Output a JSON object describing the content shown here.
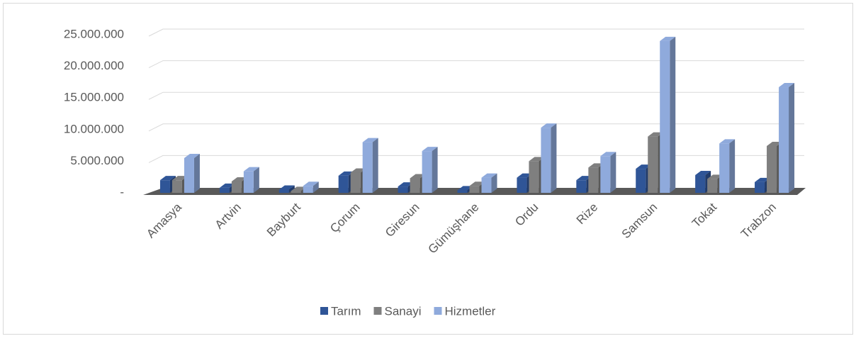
{
  "chart_data": {
    "type": "bar3d",
    "categories": [
      "Amasya",
      "Artvin",
      "Bayburt",
      "Çorum",
      "Giresun",
      "Gümüşhane",
      "Ordu",
      "Rize",
      "Samsun",
      "Tokat",
      "Trabzon"
    ],
    "series": [
      {
        "name": "Tarım",
        "color": "#2f5597",
        "values": [
          2000000,
          800000,
          500000,
          2700000,
          1000000,
          400000,
          2400000,
          2000000,
          3800000,
          2800000,
          1700000
        ]
      },
      {
        "name": "Sanayi",
        "color": "#7f7f7f",
        "values": [
          2000000,
          1800000,
          300000,
          3200000,
          2300000,
          1100000,
          5000000,
          4000000,
          8900000,
          2200000,
          7400000
        ]
      },
      {
        "name": "Hizmetler",
        "color": "#8faadc",
        "values": [
          5500000,
          3400000,
          1100000,
          8000000,
          6600000,
          2400000,
          10300000,
          5800000,
          24000000,
          7800000,
          16700000
        ]
      }
    ],
    "ylim": [
      0,
      25000000
    ],
    "yticks": [
      {
        "value": 0,
        "label": "-"
      },
      {
        "value": 5000000,
        "label": "5.000.000"
      },
      {
        "value": 10000000,
        "label": "10.000.000"
      },
      {
        "value": 15000000,
        "label": "15.000.000"
      },
      {
        "value": 20000000,
        "label": "20.000.000"
      },
      {
        "value": 25000000,
        "label": "25.000.000"
      }
    ],
    "grid": true,
    "legend": "bottom"
  }
}
